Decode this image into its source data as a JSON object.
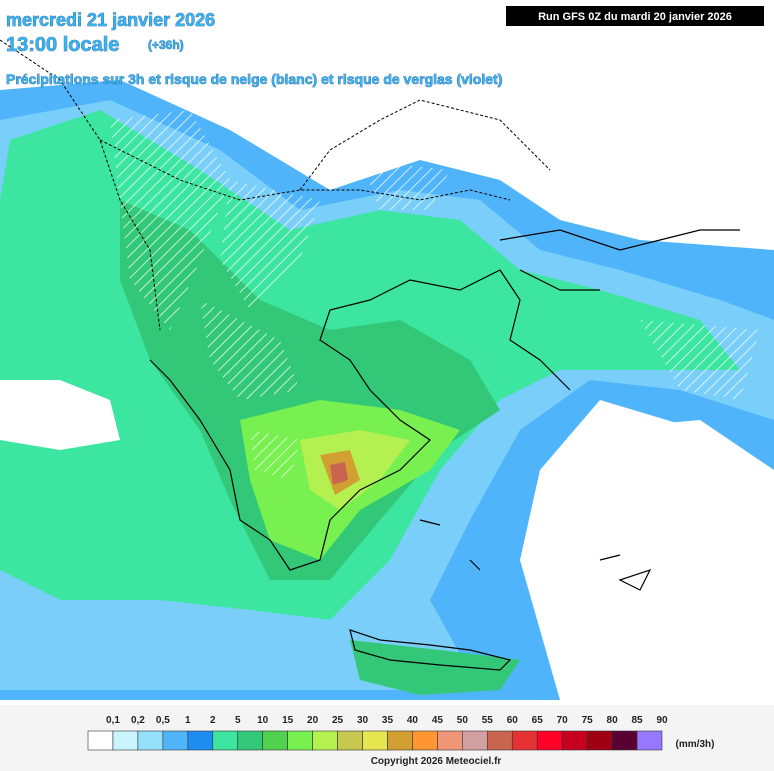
{
  "header": {
    "date": "mercredi 21 janvier 2026",
    "time": "13:00 locale",
    "lead": "(+36h)",
    "subtitle": "Précipitations sur 3h et risque de neige (blanc) et risque de verglas (violet)",
    "run": "Run GFS 0Z du mardi 20 janvier 2026"
  },
  "legend": {
    "labels": [
      "0,1",
      "0,2",
      "0,5",
      "1",
      "2",
      "5",
      "10",
      "15",
      "20",
      "25",
      "30",
      "35",
      "40",
      "45",
      "50",
      "55",
      "60",
      "65",
      "70",
      "75",
      "80",
      "85",
      "90"
    ],
    "colors": [
      "#ffffff",
      "#c8f5ff",
      "#96e1fa",
      "#50b4fa",
      "#1e8cf0",
      "#3ce6a0",
      "#32c878",
      "#50d250",
      "#78f050",
      "#b4f050",
      "#c8c850",
      "#e6e650",
      "#d2a032",
      "#ff9632",
      "#f09678",
      "#d2a0a0",
      "#c86450",
      "#e63232",
      "#ff0028",
      "#c80020",
      "#a00014",
      "#5a0032",
      "#9678ff"
    ],
    "unit": "(mm/3h)"
  },
  "footer": {
    "copyright": "Copyright 2026 Meteociel.fr"
  }
}
